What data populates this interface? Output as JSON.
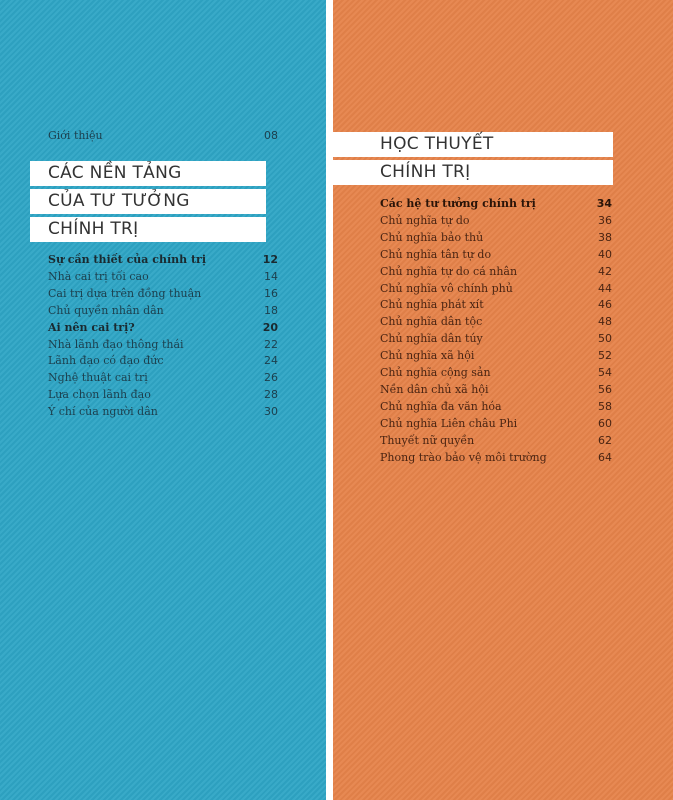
{
  "left_page": {
    "intro": {
      "title": "Giới thiệu",
      "page": "08"
    },
    "chapter_title_lines": [
      "CÁC NỀN TẢNG",
      "CỦA TƯ TƯỞNG",
      "CHÍNH TRỊ"
    ],
    "entries": [
      {
        "title": "Sự cần thiết của chính trị",
        "page": "12",
        "bold": true
      },
      {
        "title": "Nhà cai trị tối cao",
        "page": "14"
      },
      {
        "title": "Cai trị dựa trên đồng thuận",
        "page": "16"
      },
      {
        "title": "Chủ quyền nhân dân",
        "page": "18"
      },
      {
        "title": "Ai nên cai trị?",
        "page": "20",
        "bold": true
      },
      {
        "title": "Nhà lãnh đạo thông thái",
        "page": "22"
      },
      {
        "title": "Lãnh đạo có đạo đức",
        "page": "24"
      },
      {
        "title": "Nghệ thuật cai trị",
        "page": "26"
      },
      {
        "title": "Lựa chọn lãnh đạo",
        "page": "28"
      },
      {
        "title": "Ý chí của người dân",
        "page": "30"
      }
    ],
    "color": "#2ea5c5"
  },
  "right_page": {
    "chapter_title_lines": [
      "HỌC THUYẾT",
      "CHÍNH TRỊ"
    ],
    "entries": [
      {
        "title": "Các hệ tư tưởng chính trị",
        "page": "34",
        "bold": true
      },
      {
        "title": "Chủ nghĩa tự do",
        "page": "36"
      },
      {
        "title": "Chủ nghĩa bảo thủ",
        "page": "38"
      },
      {
        "title": "Chủ nghĩa tân tự do",
        "page": "40"
      },
      {
        "title": "Chủ nghĩa tự do cá nhân",
        "page": "42"
      },
      {
        "title": "Chủ nghĩa vô chính phủ",
        "page": "44"
      },
      {
        "title": "Chủ nghĩa phát xít",
        "page": "46"
      },
      {
        "title": "Chủ nghĩa dân tộc",
        "page": "48"
      },
      {
        "title": "Chủ nghĩa dân túy",
        "page": "50"
      },
      {
        "title": "Chủ nghĩa xã hội",
        "page": "52"
      },
      {
        "title": "Chủ nghĩa cộng sản",
        "page": "54"
      },
      {
        "title": "Nền dân chủ xã hội",
        "page": "56"
      },
      {
        "title": "Chủ nghĩa đa văn hóa",
        "page": "58"
      },
      {
        "title": "Chủ nghĩa Liên châu Phi",
        "page": "60"
      },
      {
        "title": "Thuyết nữ quyền",
        "page": "62"
      },
      {
        "title": "Phong trào bảo vệ môi trường",
        "page": "64"
      }
    ],
    "color": "#e6834a"
  }
}
